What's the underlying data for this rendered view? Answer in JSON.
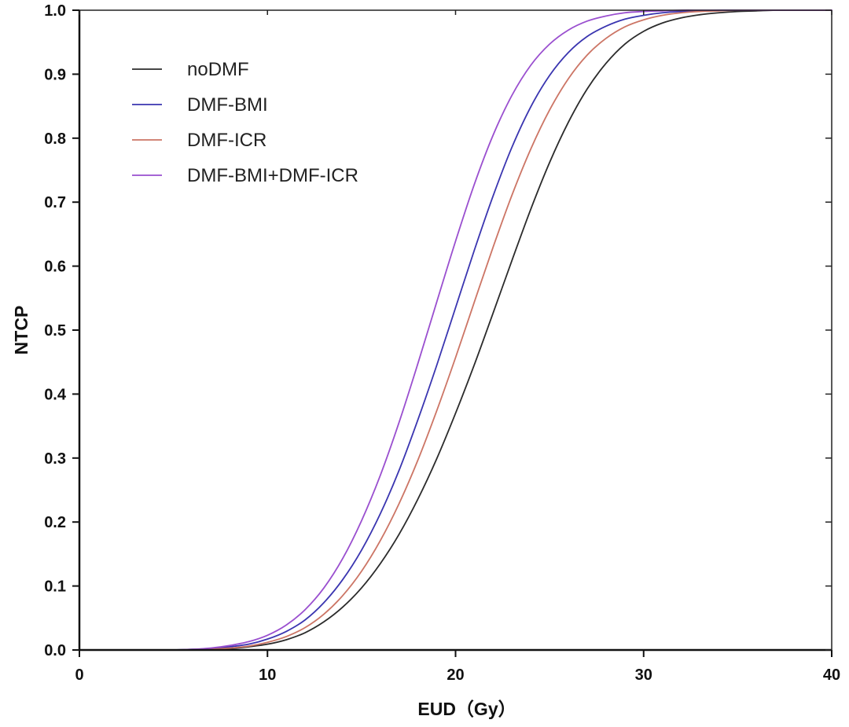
{
  "chart_data": {
    "type": "line",
    "title": "",
    "xlabel": "EUD（Gy）",
    "ylabel": "NTCP",
    "xlim": [
      0,
      40
    ],
    "ylim": [
      0,
      1.0
    ],
    "xticks": [
      0,
      10,
      20,
      30,
      40
    ],
    "xtick_labels": [
      "0",
      "10",
      "20",
      "30",
      "40"
    ],
    "yticks": [
      0,
      0.1,
      0.2,
      0.3,
      0.4,
      0.5,
      0.6,
      0.7,
      0.8,
      0.9,
      1.0
    ],
    "ytick_labels": [
      "0.0",
      "0.1",
      "0.2",
      "0.3",
      "0.4",
      "0.5",
      "0.6",
      "0.7",
      "0.8",
      "0.9",
      "1.0"
    ],
    "grid": false,
    "legend_position": "top-left",
    "x": [
      5,
      6,
      7,
      8,
      9,
      10,
      11,
      12,
      13,
      14,
      15,
      16,
      17,
      18,
      19,
      20,
      21,
      22,
      23,
      24,
      25,
      26,
      27,
      28,
      29,
      30,
      31,
      32,
      33,
      34,
      35,
      36,
      37,
      38,
      39,
      40
    ],
    "series": [
      {
        "name": "noDMF",
        "color": "#2b2b2b",
        "values": [
          0.0,
          0.0,
          0.0,
          0.002,
          0.005,
          0.009,
          0.016,
          0.027,
          0.044,
          0.067,
          0.097,
          0.135,
          0.181,
          0.236,
          0.299,
          0.37,
          0.446,
          0.527,
          0.609,
          0.689,
          0.762,
          0.825,
          0.877,
          0.917,
          0.947,
          0.967,
          0.98,
          0.988,
          0.993,
          0.996,
          0.998,
          0.999,
          1.0,
          1.0,
          1.0,
          1.0
        ]
      },
      {
        "name": "DMF-BMI",
        "color": "#3a35b0",
        "values": [
          0.0,
          0.001,
          0.002,
          0.005,
          0.009,
          0.017,
          0.029,
          0.047,
          0.074,
          0.11,
          0.156,
          0.213,
          0.281,
          0.36,
          0.445,
          0.535,
          0.625,
          0.71,
          0.786,
          0.849,
          0.898,
          0.934,
          0.959,
          0.975,
          0.986,
          0.992,
          0.996,
          0.998,
          0.999,
          1.0,
          1.0,
          1.0,
          1.0,
          1.0,
          1.0,
          1.0
        ]
      },
      {
        "name": "DMF-ICR",
        "color": "#cc7565",
        "values": [
          0.0,
          0.0,
          0.001,
          0.003,
          0.006,
          0.012,
          0.021,
          0.035,
          0.056,
          0.085,
          0.123,
          0.171,
          0.229,
          0.297,
          0.374,
          0.457,
          0.544,
          0.63,
          0.711,
          0.783,
          0.844,
          0.893,
          0.93,
          0.956,
          0.974,
          0.985,
          0.992,
          0.996,
          0.998,
          0.999,
          1.0,
          1.0,
          1.0,
          1.0,
          1.0,
          1.0
        ]
      },
      {
        "name": "DMF-BMI+DMF-ICR",
        "color": "#9a4fcf",
        "values": [
          0.0,
          0.001,
          0.003,
          0.007,
          0.013,
          0.023,
          0.039,
          0.063,
          0.097,
          0.143,
          0.202,
          0.273,
          0.356,
          0.448,
          0.544,
          0.639,
          0.728,
          0.805,
          0.867,
          0.914,
          0.947,
          0.969,
          0.983,
          0.991,
          0.996,
          0.998,
          0.999,
          1.0,
          1.0,
          1.0,
          1.0,
          1.0,
          1.0,
          1.0,
          1.0,
          1.0
        ]
      }
    ]
  }
}
